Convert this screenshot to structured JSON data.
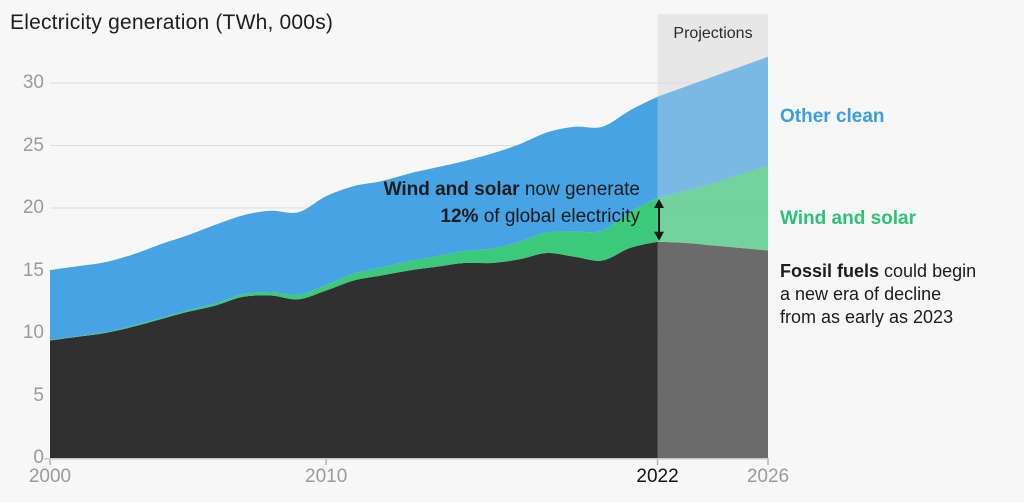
{
  "header": {
    "title": "Electricity generation (TWh, 000s)"
  },
  "projections_band": {
    "label": "Projections",
    "start_year": 2022,
    "end_year": 2026
  },
  "legend": {
    "other_clean": {
      "label": "Other clean",
      "color": "#3b9ee4"
    },
    "wind_solar": {
      "label": "Wind and solar",
      "color": "#2cc377"
    },
    "fossil_note": {
      "bold": "Fossil fuels",
      "line1_rest": " could begin",
      "line2": "a new era of decline",
      "line3": "from as early as 2023"
    }
  },
  "annotation": {
    "bold1": "Wind and solar",
    "rest1": " now generate",
    "bold2": "12%",
    "rest2": " of global electricity"
  },
  "chart_data": {
    "type": "area",
    "stacked": true,
    "title": "Electricity generation (TWh, 000s)",
    "xlabel": "",
    "ylabel": "TWh, 000s",
    "ylim": [
      0,
      32.5
    ],
    "grid": "horizontal",
    "projection_from": 2022,
    "band_color": "#e7e7e7",
    "projection_opacity": 0.68,
    "background_color": "#f7f7f7",
    "x": [
      2000,
      2001,
      2002,
      2003,
      2004,
      2005,
      2006,
      2007,
      2008,
      2009,
      2010,
      2011,
      2012,
      2013,
      2014,
      2015,
      2016,
      2017,
      2018,
      2019,
      2020,
      2021,
      2022,
      2023,
      2024,
      2025,
      2026
    ],
    "series": [
      {
        "name": "Fossil fuels",
        "color": "#303030",
        "values": [
          9.4,
          9.7,
          10.0,
          10.5,
          11.1,
          11.7,
          12.2,
          12.9,
          13.0,
          12.7,
          13.4,
          14.2,
          14.6,
          15.0,
          15.3,
          15.6,
          15.6,
          15.9,
          16.4,
          16.1,
          15.8,
          16.8,
          17.3,
          17.2,
          17.0,
          16.8,
          16.6
        ]
      },
      {
        "name": "Wind and solar",
        "color": "#3cc97c",
        "values": [
          0.03,
          0.04,
          0.06,
          0.08,
          0.1,
          0.13,
          0.17,
          0.22,
          0.28,
          0.36,
          0.45,
          0.55,
          0.65,
          0.75,
          0.85,
          0.95,
          1.15,
          1.4,
          1.65,
          2.0,
          2.4,
          2.9,
          3.5,
          4.2,
          5.0,
          5.9,
          6.8
        ]
      },
      {
        "name": "Other clean",
        "color": "#47a3e3",
        "values": [
          5.6,
          5.6,
          5.6,
          5.7,
          5.9,
          6.0,
          6.3,
          6.3,
          6.5,
          6.6,
          7.1,
          7.0,
          6.9,
          7.0,
          7.1,
          7.2,
          7.6,
          7.8,
          8.0,
          8.4,
          8.3,
          8.1,
          8.1,
          8.3,
          8.5,
          8.6,
          8.7
        ]
      }
    ],
    "yticks": [
      0,
      5,
      10,
      15,
      20,
      25,
      30
    ],
    "xticks": [
      {
        "label": "2000",
        "year": 2000,
        "emph": false
      },
      {
        "label": "2010",
        "year": 2010,
        "emph": false
      },
      {
        "label": "2022",
        "year": 2022,
        "emph": true
      },
      {
        "label": "2026",
        "year": 2026,
        "emph": false
      }
    ],
    "wind_solar_share_2022": "12%"
  }
}
